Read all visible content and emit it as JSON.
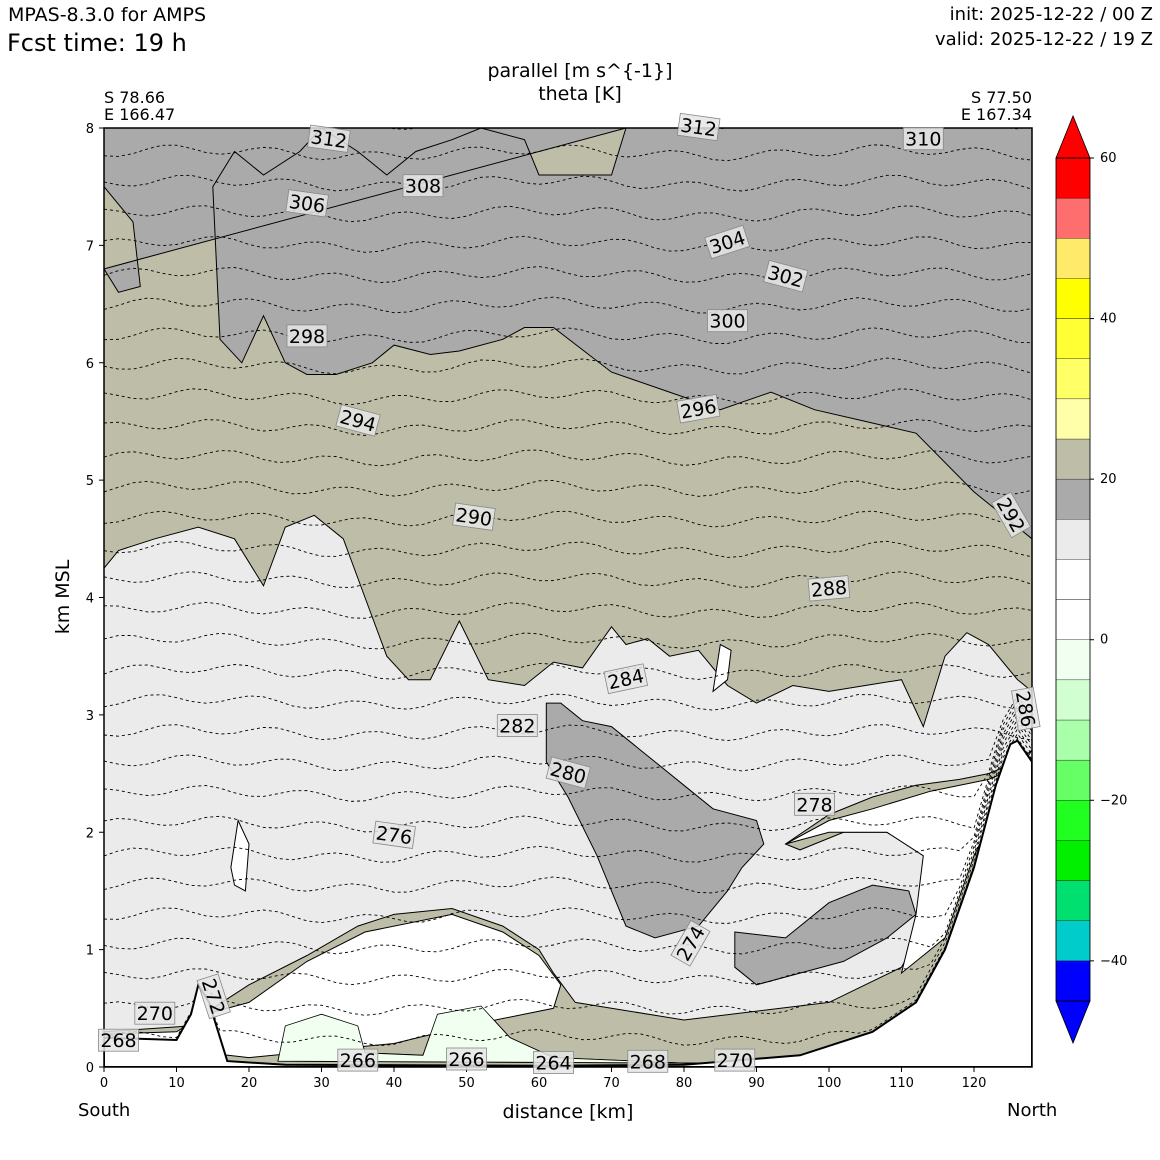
{
  "header": {
    "model": "MPAS-8.3.0 for AMPS",
    "fcst_time": "Fcst time:   19 h",
    "init": "init: 2025-12-22 / 00 Z",
    "valid": "valid: 2025-12-22 / 19 Z"
  },
  "chart_data": {
    "type": "heatmap",
    "title": "parallel [m s^{-1}]",
    "subtitle": "theta [K]",
    "xlabel": "distance [km]",
    "ylabel": "km MSL",
    "xlim": [
      0,
      128
    ],
    "ylim": [
      0,
      8
    ],
    "x_ticks": [
      0,
      10,
      20,
      30,
      40,
      50,
      60,
      70,
      80,
      90,
      100,
      110,
      120
    ],
    "y_ticks": [
      0,
      1,
      2,
      3,
      4,
      5,
      6,
      7,
      8
    ],
    "left_endpoint": {
      "lat": "S 78.66",
      "lon": "E 166.47"
    },
    "right_endpoint": {
      "lat": "S 77.50",
      "lon": "E 167.34"
    },
    "left_direction": "South",
    "right_direction": "North",
    "fill_field": "parallel wind speed",
    "fill_levels": [
      -50,
      -45,
      -40,
      -35,
      -30,
      -25,
      -20,
      -15,
      -10,
      -5,
      0,
      5,
      10,
      15,
      20,
      25,
      30,
      35,
      40,
      45,
      50,
      55,
      60
    ],
    "fill_colors": [
      "#0000c8",
      "#0000ff",
      "#00cccc",
      "#00e070",
      "#00f000",
      "#20ff20",
      "#66ff66",
      "#aaffaa",
      "#d2ffd2",
      "#f0fff0",
      "#ffffff",
      "#ffffff",
      "#ebebeb",
      "#aaaaaa",
      "#bebea8",
      "#ffffaa",
      "#ffff66",
      "#ffff33",
      "#ffff00",
      "#ffea6a",
      "#ff6e6e",
      "#ff0000"
    ],
    "colorbar_ticks": [
      60,
      40,
      20,
      0,
      -20,
      -40
    ],
    "colorbar_tick_labels": [
      "60",
      "40",
      "20",
      "0",
      "−20",
      "−40"
    ],
    "regions": [
      {
        "speed_bin": "15-20",
        "color": "#aaaaaa",
        "outline": [
          [
            0,
            6.8
          ],
          [
            2,
            6.6
          ],
          [
            5,
            6.65
          ],
          [
            4,
            7.2
          ],
          [
            0,
            7.5
          ],
          [
            0,
            8
          ],
          [
            128,
            8
          ],
          [
            128,
            4.5
          ],
          [
            120,
            4.9
          ],
          [
            112,
            5.4
          ],
          [
            105,
            5.5
          ],
          [
            98,
            5.6
          ],
          [
            92,
            5.75
          ],
          [
            85,
            5.6
          ],
          [
            78,
            5.75
          ],
          [
            70,
            5.92
          ],
          [
            62,
            6.3
          ],
          [
            58,
            6.3
          ],
          [
            55,
            6.2
          ],
          [
            49,
            6.1
          ],
          [
            45,
            6.07
          ],
          [
            40,
            6.15
          ],
          [
            37,
            6.0
          ],
          [
            32,
            5.9
          ],
          [
            28,
            5.9
          ],
          [
            25,
            6.0
          ],
          [
            22,
            6.4
          ],
          [
            19,
            6.0
          ],
          [
            16,
            6.2
          ],
          [
            15,
            7.5
          ],
          [
            18,
            7.8
          ],
          [
            22,
            7.6
          ],
          [
            27,
            7.8
          ],
          [
            30,
            8.0
          ],
          [
            35,
            7.8
          ],
          [
            39,
            7.6
          ],
          [
            43,
            7.8
          ],
          [
            48,
            7.9
          ],
          [
            52,
            8.0
          ],
          [
            58,
            7.9
          ],
          [
            60,
            7.6
          ],
          [
            66,
            7.6
          ],
          [
            70,
            7.6
          ],
          [
            72,
            8.0
          ]
        ]
      },
      {
        "speed_bin": "10-15",
        "color": "#ebebeb",
        "outline": [
          [
            0,
            0.3
          ],
          [
            12,
            0.35
          ],
          [
            15,
            0.5
          ],
          [
            20,
            0.7
          ],
          [
            28,
            0.95
          ],
          [
            35,
            1.2
          ],
          [
            40,
            1.3
          ],
          [
            48,
            1.35
          ],
          [
            55,
            1.2
          ],
          [
            60,
            1.0
          ],
          [
            62,
            0.8
          ],
          [
            65,
            0.55
          ],
          [
            80,
            0.4
          ],
          [
            100,
            0.55
          ],
          [
            110,
            0.85
          ],
          [
            114,
            1.3
          ],
          [
            113,
            1.8
          ],
          [
            108,
            2.0
          ],
          [
            102,
            2.0
          ],
          [
            96,
            1.85
          ],
          [
            94,
            1.9
          ],
          [
            100,
            2.15
          ],
          [
            106,
            2.3
          ],
          [
            112,
            2.4
          ],
          [
            118,
            2.45
          ],
          [
            122,
            2.5
          ],
          [
            126,
            2.6
          ],
          [
            128,
            2.7
          ],
          [
            128,
            3.2
          ],
          [
            126,
            3.3
          ],
          [
            122,
            3.6
          ],
          [
            119,
            3.7
          ],
          [
            116,
            3.5
          ],
          [
            113,
            2.9
          ],
          [
            110,
            3.3
          ],
          [
            105,
            3.25
          ],
          [
            100,
            3.2
          ],
          [
            95,
            3.25
          ],
          [
            90,
            3.1
          ],
          [
            86,
            3.25
          ],
          [
            82,
            3.55
          ],
          [
            78,
            3.5
          ],
          [
            75,
            3.65
          ],
          [
            72,
            3.6
          ],
          [
            70,
            3.75
          ],
          [
            66,
            3.4
          ],
          [
            62,
            3.45
          ],
          [
            58,
            3.25
          ],
          [
            53,
            3.3
          ],
          [
            49,
            3.8
          ],
          [
            45,
            3.3
          ],
          [
            42,
            3.3
          ],
          [
            39,
            3.5
          ],
          [
            36,
            4.0
          ],
          [
            33,
            4.5
          ],
          [
            29,
            4.7
          ],
          [
            25,
            4.6
          ],
          [
            22,
            4.1
          ],
          [
            20,
            4.3
          ],
          [
            18,
            4.5
          ],
          [
            13,
            4.6
          ],
          [
            7,
            4.5
          ],
          [
            2,
            4.4
          ],
          [
            0,
            4.25
          ]
        ]
      },
      {
        "speed_bin": "15-20",
        "color": "#aaaaaa",
        "outline": [
          [
            61,
            3.1
          ],
          [
            61,
            2.6
          ],
          [
            64,
            2.3
          ],
          [
            68,
            1.8
          ],
          [
            72,
            1.2
          ],
          [
            76,
            1.1
          ],
          [
            82,
            1.2
          ],
          [
            86,
            1.5
          ],
          [
            88,
            1.7
          ],
          [
            91,
            1.9
          ],
          [
            90,
            2.1
          ],
          [
            84,
            2.2
          ],
          [
            80,
            2.4
          ],
          [
            74,
            2.7
          ],
          [
            70,
            2.9
          ],
          [
            66,
            2.95
          ],
          [
            63,
            3.1
          ]
        ]
      },
      {
        "speed_bin": "15-20",
        "color": "#aaaaaa",
        "outline": [
          [
            87,
            1.15
          ],
          [
            94,
            1.1
          ],
          [
            100,
            1.4
          ],
          [
            106,
            1.55
          ],
          [
            111,
            1.5
          ],
          [
            112,
            1.3
          ],
          [
            108,
            1.1
          ],
          [
            102,
            0.9
          ],
          [
            96,
            0.8
          ],
          [
            90,
            0.7
          ],
          [
            87,
            0.85
          ]
        ]
      },
      {
        "speed_bin": "-10 to -5",
        "color": "#f0fff0",
        "outline": [
          [
            24,
            0.05
          ],
          [
            25,
            0.35
          ],
          [
            30,
            0.45
          ],
          [
            35,
            0.35
          ],
          [
            36,
            0.12
          ],
          [
            44,
            0.1
          ],
          [
            46,
            0.45
          ],
          [
            52,
            0.52
          ],
          [
            56,
            0.25
          ],
          [
            62,
            0.08
          ],
          [
            85,
            0.02
          ],
          [
            100,
            0.05
          ],
          [
            108,
            0.15
          ],
          [
            114,
            0.5
          ],
          [
            120,
            1.2
          ],
          [
            124,
            1.8
          ],
          [
            126,
            2.3
          ],
          [
            127,
            2.6
          ],
          [
            128,
            2.7
          ],
          [
            128,
            0.02
          ]
        ]
      }
    ],
    "terrain_km": [
      [
        0,
        0.25
      ],
      [
        10,
        0.23
      ],
      [
        12,
        0.45
      ],
      [
        13,
        0.7
      ],
      [
        14.5,
        0.55
      ],
      [
        16,
        0.25
      ],
      [
        17,
        0.05
      ],
      [
        25,
        0.02
      ],
      [
        60,
        0.01
      ],
      [
        80,
        0.02
      ],
      [
        96,
        0.1
      ],
      [
        106,
        0.3
      ],
      [
        112,
        0.55
      ],
      [
        116,
        1.0
      ],
      [
        120,
        1.7
      ],
      [
        123,
        2.4
      ],
      [
        125,
        2.75
      ],
      [
        126,
        2.78
      ],
      [
        128,
        2.6
      ]
    ],
    "theta_contour_labels": [
      {
        "value": "268",
        "x": 2,
        "y": 0.22
      },
      {
        "value": "270",
        "x": 7,
        "y": 0.45
      },
      {
        "value": "272",
        "x": 15,
        "y": 0.6
      },
      {
        "value": "266",
        "x": 35,
        "y": 0.05
      },
      {
        "value": "266",
        "x": 50,
        "y": 0.06
      },
      {
        "value": "264",
        "x": 62,
        "y": 0.03
      },
      {
        "value": "268",
        "x": 75,
        "y": 0.04
      },
      {
        "value": "270",
        "x": 87,
        "y": 0.05
      },
      {
        "value": "274",
        "x": 81,
        "y": 1.05
      },
      {
        "value": "276",
        "x": 40,
        "y": 1.97
      },
      {
        "value": "278",
        "x": 98,
        "y": 2.23
      },
      {
        "value": "280",
        "x": 64,
        "y": 2.5
      },
      {
        "value": "282",
        "x": 57,
        "y": 2.9
      },
      {
        "value": "284",
        "x": 72,
        "y": 3.3
      },
      {
        "value": "286",
        "x": 127,
        "y": 3.05
      },
      {
        "value": "288",
        "x": 100,
        "y": 4.07
      },
      {
        "value": "290",
        "x": 51,
        "y": 4.68
      },
      {
        "value": "292",
        "x": 125,
        "y": 4.7
      },
      {
        "value": "294",
        "x": 35,
        "y": 5.5
      },
      {
        "value": "296",
        "x": 82,
        "y": 5.6
      },
      {
        "value": "298",
        "x": 28,
        "y": 6.22
      },
      {
        "value": "300",
        "x": 86,
        "y": 6.35
      },
      {
        "value": "302",
        "x": 94,
        "y": 6.73
      },
      {
        "value": "304",
        "x": 86,
        "y": 7.02
      },
      {
        "value": "306",
        "x": 28,
        "y": 7.35
      },
      {
        "value": "308",
        "x": 44,
        "y": 7.5
      },
      {
        "value": "310",
        "x": 113,
        "y": 7.9
      },
      {
        "value": "312",
        "x": 31,
        "y": 7.9
      },
      {
        "value": "312",
        "x": 82,
        "y": 8.0
      }
    ]
  }
}
